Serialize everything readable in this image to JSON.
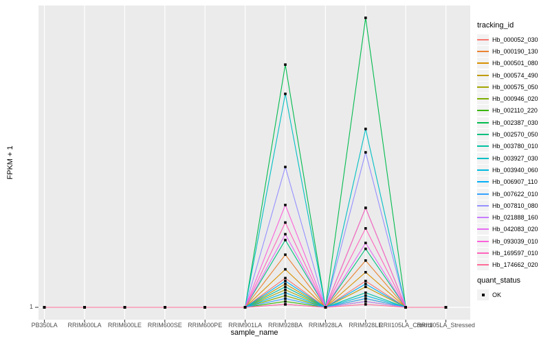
{
  "figure": {
    "background": "#FFFFFF",
    "panel_background": "#EBEBEB",
    "gridline_color": "#FFFFFF",
    "tick_color": "#333333",
    "axis_text_color": "#4D4D4D"
  },
  "axes": {
    "x_title": "sample_name",
    "y_title": "FPKM + 1",
    "y_tick_label": "1"
  },
  "legend": {
    "tracking_title": "tracking_id",
    "quant_title": "quant_status",
    "quant_item_label": "OK",
    "key_background": "#F2F2F2",
    "point_symbol": "filled-square",
    "point_color": "#000000"
  },
  "chart_data": {
    "type": "line",
    "title": "",
    "xlabel": "sample_name",
    "ylabel": "FPKM + 1",
    "y_tick_label": "1",
    "x_categories": [
      "PB350LA",
      "RRIM600LA",
      "RRIM600LE",
      "RRIM600SE",
      "RRIM600PE",
      "RRIM901LA",
      "RRIM928BA",
      "RRIM928LA",
      "RRIM928LE",
      "RRII105LA_Control",
      "RRII105LA_Stressed"
    ],
    "ylim": [
      1,
      100
    ],
    "y_breaks_shown": [
      "1"
    ],
    "grid": "vertical-major-plus-baseline",
    "legend_position": "right",
    "point_shape": "filled-square",
    "point_color": "#000000",
    "note": "all series flat at 1 except peaks at RRIM928BA and RRIM928LE; values estimated from pixel heights, y axis labels only the value 1",
    "series": [
      {
        "name": "Hb_000052_030",
        "color": "#F8766D",
        "values": [
          1,
          1,
          1,
          1,
          1,
          1,
          11,
          1,
          10,
          1,
          1
        ]
      },
      {
        "name": "Hb_000190_130",
        "color": "#EA8331",
        "values": [
          1,
          1,
          1,
          1,
          1,
          1,
          19,
          1,
          17,
          1,
          1
        ]
      },
      {
        "name": "Hb_000501_080",
        "color": "#D89000",
        "values": [
          1,
          1,
          1,
          1,
          1,
          1,
          14,
          1,
          13,
          1,
          1
        ]
      },
      {
        "name": "Hb_000574_490",
        "color": "#C09B00",
        "values": [
          1,
          1,
          1,
          1,
          1,
          1,
          9,
          1,
          8,
          1,
          1
        ]
      },
      {
        "name": "Hb_000575_050",
        "color": "#A3A500",
        "values": [
          1,
          1,
          1,
          1,
          1,
          1,
          7,
          1,
          35,
          1,
          1
        ]
      },
      {
        "name": "Hb_000946_020",
        "color": "#7CAE00",
        "values": [
          1,
          1,
          1,
          1,
          1,
          1,
          5,
          1,
          4,
          1,
          1
        ]
      },
      {
        "name": "Hb_002110_220",
        "color": "#39B600",
        "values": [
          1,
          1,
          1,
          1,
          1,
          1,
          3,
          1,
          3,
          1,
          1
        ]
      },
      {
        "name": "Hb_002387_030",
        "color": "#00BB4E",
        "values": [
          1,
          1,
          1,
          1,
          1,
          1,
          84,
          1,
          100,
          1,
          1
        ]
      },
      {
        "name": "Hb_002570_050",
        "color": "#00BF7D",
        "values": [
          1,
          1,
          1,
          1,
          1,
          1,
          24,
          1,
          21,
          1,
          1
        ]
      },
      {
        "name": "Hb_003780_010",
        "color": "#00C1A3",
        "values": [
          1,
          1,
          1,
          1,
          1,
          1,
          8,
          1,
          6,
          1,
          1
        ]
      },
      {
        "name": "Hb_003927_030",
        "color": "#00BFC4",
        "values": [
          1,
          1,
          1,
          1,
          1,
          1,
          74,
          1,
          62,
          1,
          1
        ]
      },
      {
        "name": "Hb_003940_060",
        "color": "#00BAE0",
        "values": [
          1,
          1,
          1,
          1,
          1,
          1,
          6,
          1,
          5,
          1,
          1
        ]
      },
      {
        "name": "Hb_006907_110",
        "color": "#00B0F6",
        "values": [
          1,
          1,
          1,
          1,
          1,
          1,
          10,
          1,
          9,
          1,
          1
        ]
      },
      {
        "name": "Hb_007622_010",
        "color": "#35A2FF",
        "values": [
          1,
          1,
          1,
          1,
          1,
          1,
          4,
          1,
          4,
          1,
          1
        ]
      },
      {
        "name": "Hb_007810_080",
        "color": "#9590FF",
        "values": [
          1,
          1,
          1,
          1,
          1,
          1,
          49,
          1,
          54,
          1,
          1
        ]
      },
      {
        "name": "Hb_021888_160",
        "color": "#C77CFF",
        "values": [
          1,
          1,
          1,
          1,
          1,
          1,
          2,
          1,
          3,
          1,
          1
        ]
      },
      {
        "name": "Hb_042083_020",
        "color": "#E76BF3",
        "values": [
          1,
          1,
          1,
          1,
          1,
          1,
          26,
          1,
          23,
          1,
          1
        ]
      },
      {
        "name": "Hb_093039_010",
        "color": "#FA62DB",
        "values": [
          1,
          1,
          1,
          1,
          1,
          1,
          36,
          1,
          35,
          1,
          1
        ]
      },
      {
        "name": "Hb_169597_010",
        "color": "#FF62BC",
        "values": [
          1,
          1,
          1,
          1,
          1,
          1,
          30,
          1,
          28,
          1,
          1
        ]
      },
      {
        "name": "Hb_174662_020",
        "color": "#FF6A98",
        "values": [
          1,
          1,
          1,
          1,
          1,
          1,
          2,
          1,
          2,
          1,
          1
        ]
      }
    ]
  }
}
